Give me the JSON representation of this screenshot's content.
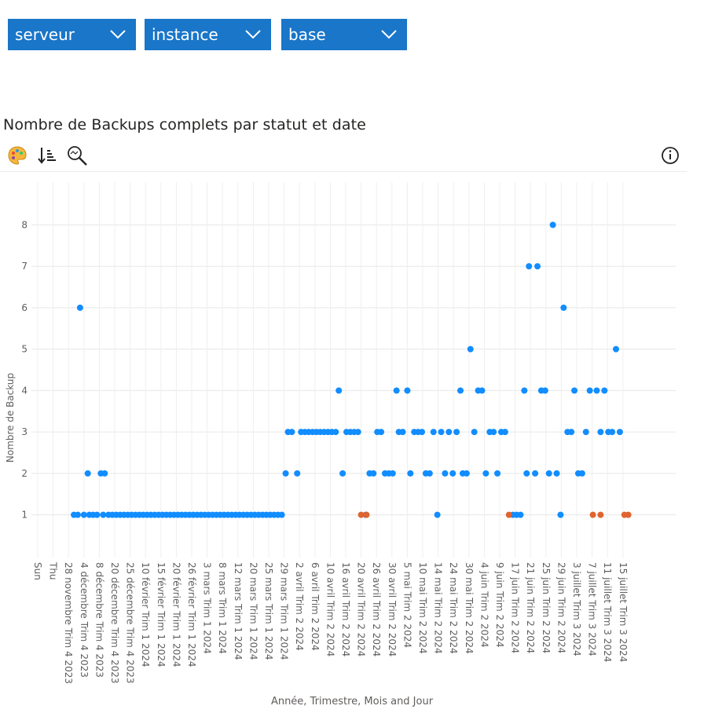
{
  "slicers": [
    {
      "label": "serveur"
    },
    {
      "label": "instance"
    },
    {
      "label": "base"
    }
  ],
  "visual": {
    "title": "Nombre de Backups complets par statut et date",
    "toolbar": [
      "palette-icon",
      "sort-icon",
      "zoom-icon"
    ],
    "info_icon": "info-icon"
  },
  "colors": {
    "accent": "#1976c9",
    "ok": "#118dff",
    "failed": "#e0642f",
    "grid": "#e6e6e6"
  },
  "chart_data": {
    "type": "scatter",
    "title": "Nombre de Backups complets par statut et date",
    "xlabel": "Année, Trimestre, Mois and Jour",
    "ylabel": "Nombre de Backup",
    "ylim": [
      0.5,
      8.5
    ],
    "yticks": [
      1,
      2,
      3,
      4,
      5,
      6,
      7,
      8
    ],
    "grid": true,
    "x_categories": [
      "Sun",
      "Thu",
      "28 novembre Trim 4 2023",
      "4 décembre Trim 4 2023",
      "8 décembre Trim 4 2023",
      "20 décembre Trim 4 2023",
      "25 décembre Trim 4 2023",
      "10 février Trim 1 2024",
      "15 février Trim 1 2024",
      "20 février Trim 1 2024",
      "26 février Trim 1 2024",
      "3 mars Trim 1 2024",
      "8 mars Trim 1 2024",
      "12 mars Trim 1 2024",
      "20 mars Trim 1 2024",
      "25 mars Trim 1 2024",
      "29 mars Trim 1 2024",
      "2 avril Trim 2 2024",
      "6 avril Trim 2 2024",
      "10 avril Trim 2 2024",
      "16 avril Trim 2 2024",
      "20 avril Trim 2 2024",
      "26 avril Trim 2 2024",
      "30 avril Trim 2 2024",
      "5 mai Trim 2 2024",
      "10 mai Trim 2 2024",
      "14 mai Trim 2 2024",
      "24 mai Trim 2 2024",
      "30 mai Trim 2 2024",
      "4 juin Trim 2 2024",
      "9 juin Trim 2 2024",
      "17 juin Trim 2 2024",
      "21 juin Trim 2 2024",
      "25 juin Trim 2 2024",
      "29 juin Trim 2 2024",
      "3 juillet Trim 3 2024",
      "7 juillet Trim 3 2024",
      "11 juillet Trim 3 2024",
      "15 juillet Trim 3 2024"
    ],
    "series": [
      {
        "color": "#118dff",
        "points": [
          [
            2.35,
            1
          ],
          [
            2.6,
            1
          ],
          [
            2.75,
            6
          ],
          [
            3.0,
            1
          ],
          [
            3.25,
            2
          ],
          [
            3.35,
            1
          ],
          [
            3.6,
            1
          ],
          [
            3.85,
            1
          ],
          [
            4.1,
            2
          ],
          [
            4.25,
            1
          ],
          [
            4.35,
            2
          ],
          [
            4.6,
            1
          ],
          [
            4.85,
            1
          ],
          [
            5.1,
            1
          ],
          [
            5.35,
            1
          ],
          [
            5.6,
            1
          ],
          [
            5.85,
            1
          ],
          [
            6.1,
            1
          ],
          [
            6.35,
            1
          ],
          [
            6.6,
            1
          ],
          [
            6.85,
            1
          ],
          [
            7.1,
            1
          ],
          [
            7.35,
            1
          ],
          [
            7.6,
            1
          ],
          [
            7.85,
            1
          ],
          [
            8.1,
            1
          ],
          [
            8.35,
            1
          ],
          [
            8.6,
            1
          ],
          [
            8.85,
            1
          ],
          [
            9.1,
            1
          ],
          [
            9.35,
            1
          ],
          [
            9.6,
            1
          ],
          [
            9.85,
            1
          ],
          [
            10.1,
            1
          ],
          [
            10.35,
            1
          ],
          [
            10.6,
            1
          ],
          [
            10.85,
            1
          ],
          [
            11.1,
            1
          ],
          [
            11.35,
            1
          ],
          [
            11.6,
            1
          ],
          [
            11.85,
            1
          ],
          [
            12.1,
            1
          ],
          [
            12.35,
            1
          ],
          [
            12.6,
            1
          ],
          [
            12.85,
            1
          ],
          [
            13.1,
            1
          ],
          [
            13.35,
            1
          ],
          [
            13.6,
            1
          ],
          [
            13.85,
            1
          ],
          [
            14.1,
            1
          ],
          [
            14.35,
            1
          ],
          [
            14.6,
            1
          ],
          [
            14.85,
            1
          ],
          [
            15.1,
            1
          ],
          [
            15.35,
            1
          ],
          [
            15.6,
            1
          ],
          [
            15.85,
            1
          ],
          [
            16.1,
            2
          ],
          [
            16.25,
            3
          ],
          [
            16.5,
            3
          ],
          [
            16.85,
            2
          ],
          [
            17.1,
            3
          ],
          [
            17.35,
            3
          ],
          [
            17.6,
            3
          ],
          [
            17.85,
            3
          ],
          [
            18.1,
            3
          ],
          [
            18.35,
            3
          ],
          [
            18.6,
            3
          ],
          [
            18.85,
            3
          ],
          [
            19.1,
            3
          ],
          [
            19.35,
            3
          ],
          [
            19.55,
            4
          ],
          [
            19.8,
            2
          ],
          [
            20.05,
            3
          ],
          [
            20.3,
            3
          ],
          [
            20.55,
            3
          ],
          [
            20.8,
            3
          ],
          [
            21.3,
            1
          ],
          [
            21.55,
            2
          ],
          [
            21.8,
            2
          ],
          [
            22.05,
            3
          ],
          [
            22.3,
            3
          ],
          [
            22.55,
            2
          ],
          [
            22.8,
            2
          ],
          [
            23.05,
            2
          ],
          [
            23.3,
            4
          ],
          [
            23.45,
            3
          ],
          [
            23.7,
            3
          ],
          [
            24.0,
            4
          ],
          [
            24.2,
            2
          ],
          [
            24.45,
            3
          ],
          [
            24.7,
            3
          ],
          [
            24.95,
            3
          ],
          [
            25.2,
            2
          ],
          [
            25.45,
            2
          ],
          [
            25.7,
            3
          ],
          [
            25.95,
            1
          ],
          [
            26.2,
            3
          ],
          [
            26.45,
            2
          ],
          [
            26.7,
            3
          ],
          [
            26.95,
            2
          ],
          [
            27.2,
            3
          ],
          [
            27.45,
            4
          ],
          [
            27.6,
            2
          ],
          [
            27.85,
            2
          ],
          [
            28.1,
            5
          ],
          [
            28.35,
            3
          ],
          [
            28.6,
            4
          ],
          [
            28.85,
            4
          ],
          [
            29.1,
            2
          ],
          [
            29.35,
            3
          ],
          [
            29.6,
            3
          ],
          [
            29.85,
            2
          ],
          [
            30.1,
            3
          ],
          [
            30.35,
            3
          ],
          [
            30.85,
            1
          ],
          [
            31.1,
            1
          ],
          [
            31.35,
            1
          ],
          [
            31.6,
            4
          ],
          [
            31.75,
            2
          ],
          [
            31.9,
            7
          ],
          [
            32.3,
            2
          ],
          [
            32.45,
            7
          ],
          [
            32.7,
            4
          ],
          [
            32.95,
            4
          ],
          [
            33.2,
            2
          ],
          [
            33.45,
            8
          ],
          [
            33.7,
            2
          ],
          [
            33.95,
            1
          ],
          [
            34.15,
            6
          ],
          [
            34.4,
            3
          ],
          [
            34.65,
            3
          ],
          [
            34.85,
            4
          ],
          [
            35.1,
            2
          ],
          [
            35.35,
            2
          ],
          [
            35.6,
            3
          ],
          [
            35.85,
            4
          ],
          [
            36.3,
            4
          ],
          [
            36.55,
            3
          ],
          [
            36.8,
            4
          ],
          [
            37.05,
            3
          ],
          [
            37.3,
            3
          ],
          [
            37.55,
            5
          ],
          [
            37.8,
            3
          ]
        ]
      },
      {
        "color": "#e0642f",
        "points": [
          [
            21.0,
            1
          ],
          [
            21.35,
            1
          ],
          [
            30.6,
            1
          ],
          [
            36.05,
            1
          ],
          [
            36.55,
            1
          ],
          [
            38.1,
            1
          ],
          [
            38.35,
            1
          ]
        ]
      }
    ]
  }
}
